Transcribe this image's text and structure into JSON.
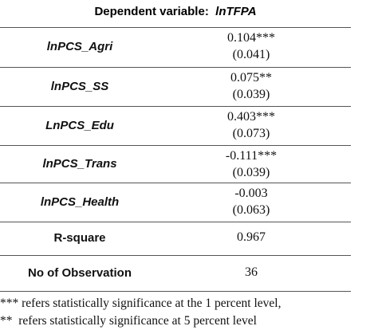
{
  "header": {
    "label": "Dependent variable:",
    "variable": "lnTFPA"
  },
  "rows": [
    {
      "label": "lnPCS_Agri",
      "coef": "0.104***",
      "se": "(0.041)"
    },
    {
      "label": "lnPCS_SS",
      "coef": "0.075**",
      "se": "(0.039)"
    },
    {
      "label": "LnPCS_Edu",
      "coef": "0.403***",
      "se": "(0.073)"
    },
    {
      "label": "lnPCS_Trans",
      "coef": "-0.111***",
      "se": "(0.039)"
    },
    {
      "label": "lnPCS_Health",
      "coef": "-0.003",
      "se": "(0.063)"
    }
  ],
  "stats": [
    {
      "label": "R-square",
      "value": "0.967"
    },
    {
      "label": "No of Observation",
      "value": "36"
    }
  ],
  "notes": [
    "*** refers statistically significance at the 1 percent level,",
    "**  refers statistically significance at 5 percent level"
  ]
}
